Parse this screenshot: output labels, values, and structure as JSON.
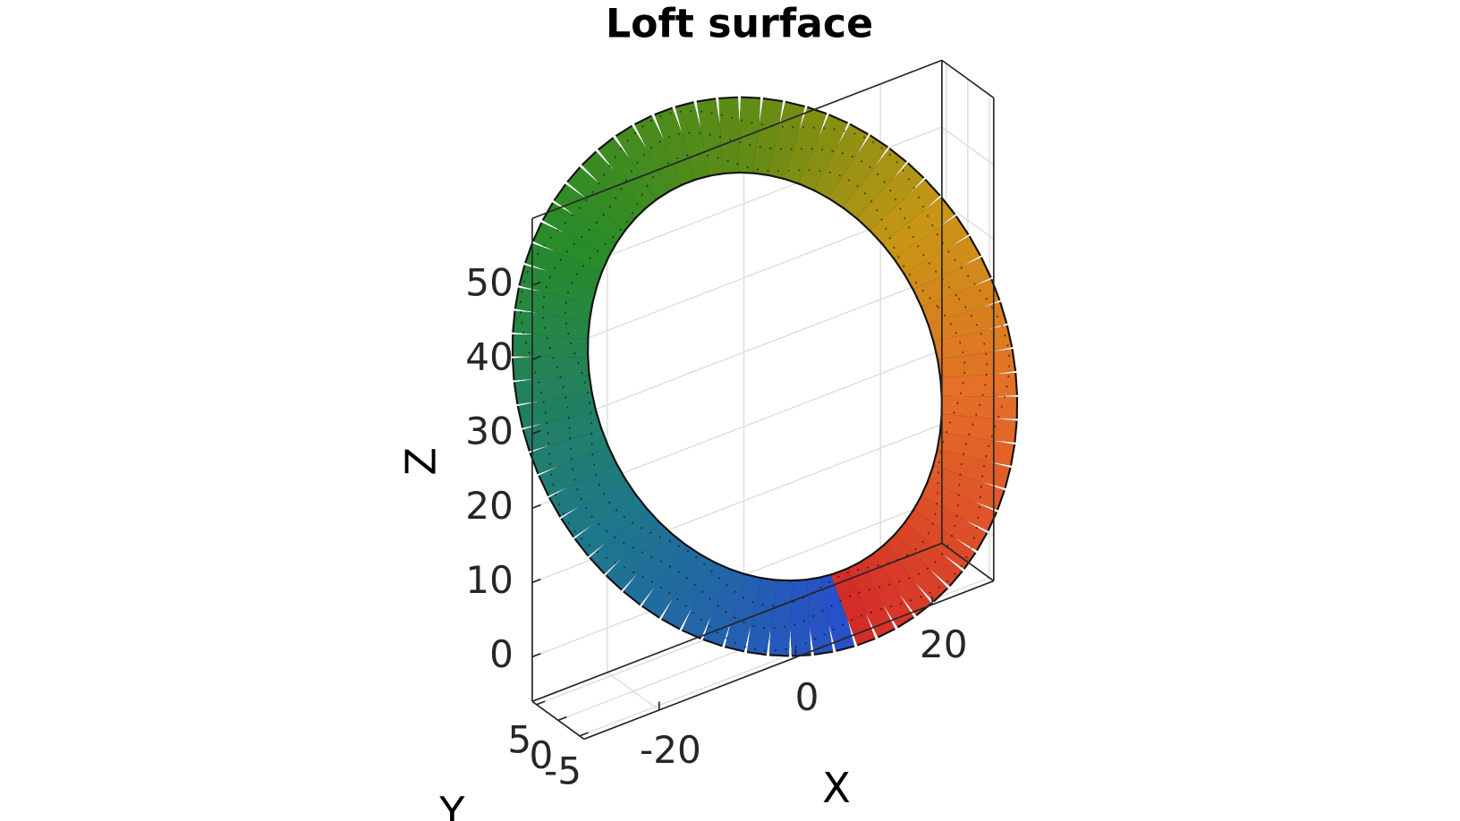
{
  "chart_data": {
    "type": "surface3d",
    "title": "Loft surface",
    "xlabel": "X",
    "ylabel": "Y",
    "zlabel": "Z",
    "xlim": [
      -31,
      29
    ],
    "ylim": [
      -6,
      6
    ],
    "zlim": [
      -6,
      59
    ],
    "xticks": [
      -20,
      0,
      20
    ],
    "yticks": [
      -5,
      0,
      5
    ],
    "zticks": [
      0,
      10,
      20,
      30,
      40,
      50
    ],
    "grid": true,
    "box": true
  }
}
